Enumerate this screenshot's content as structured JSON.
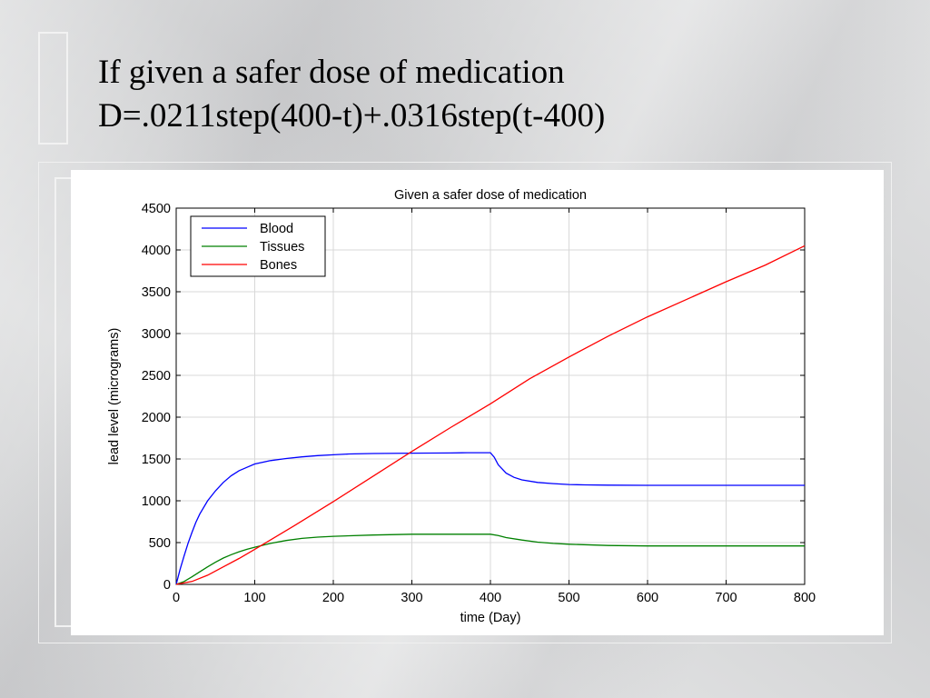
{
  "slide": {
    "title_line1": "If given a safer dose of medication",
    "title_line2": "D=.0211step(400-t)+.0316step(t-400)"
  },
  "chart_data": {
    "type": "line",
    "title": "Given a safer dose of medication",
    "xlabel": "time (Day)",
    "ylabel": "lead level (micrograms)",
    "xlim": [
      0,
      800
    ],
    "ylim": [
      0,
      4500
    ],
    "xticks": [
      0,
      100,
      200,
      300,
      400,
      500,
      600,
      700,
      800
    ],
    "yticks": [
      0,
      500,
      1000,
      1500,
      2000,
      2500,
      3000,
      3500,
      4000,
      4500
    ],
    "grid": true,
    "legend": "top-left",
    "series": [
      {
        "name": "Blood",
        "color": "#0000ff",
        "x": [
          0,
          5,
          10,
          15,
          20,
          25,
          30,
          40,
          50,
          60,
          70,
          80,
          90,
          100,
          120,
          140,
          160,
          180,
          200,
          220,
          250,
          300,
          350,
          370,
          400,
          405,
          410,
          420,
          430,
          440,
          460,
          480,
          500,
          520,
          550,
          600,
          700,
          800
        ],
        "y": [
          0,
          180,
          340,
          490,
          620,
          740,
          840,
          1000,
          1120,
          1220,
          1300,
          1360,
          1400,
          1440,
          1480,
          1505,
          1525,
          1540,
          1550,
          1560,
          1565,
          1570,
          1572,
          1575,
          1575,
          1520,
          1430,
          1330,
          1280,
          1250,
          1220,
          1205,
          1195,
          1190,
          1187,
          1185,
          1185,
          1185
        ]
      },
      {
        "name": "Tissues",
        "color": "#008000",
        "x": [
          0,
          10,
          20,
          30,
          40,
          50,
          60,
          70,
          80,
          90,
          100,
          120,
          140,
          160,
          180,
          200,
          250,
          300,
          400,
          410,
          420,
          440,
          460,
          480,
          500,
          550,
          600,
          700,
          800
        ],
        "y": [
          0,
          35,
          90,
          150,
          210,
          265,
          315,
          355,
          390,
          420,
          445,
          490,
          525,
          550,
          565,
          575,
          590,
          600,
          600,
          585,
          560,
          530,
          505,
          490,
          480,
          465,
          460,
          460,
          460
        ]
      },
      {
        "name": "Bones",
        "color": "#ff0000",
        "x": [
          0,
          20,
          40,
          60,
          80,
          100,
          150,
          200,
          250,
          300,
          350,
          400,
          450,
          500,
          550,
          600,
          650,
          700,
          750,
          800
        ],
        "y": [
          0,
          35,
          110,
          210,
          310,
          420,
          700,
          990,
          1290,
          1590,
          1880,
          2160,
          2460,
          2720,
          2970,
          3200,
          3410,
          3620,
          3820,
          4050
        ]
      }
    ]
  }
}
